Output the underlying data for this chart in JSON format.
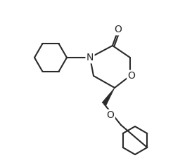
{
  "background_color": "#ffffff",
  "line_color": "#2a2a2a",
  "lw": 1.5,
  "atom_labels": {
    "N": "N",
    "O_ring": "O",
    "O_ether": "O",
    "C_carbonyl": "O"
  },
  "font_size": 9
}
